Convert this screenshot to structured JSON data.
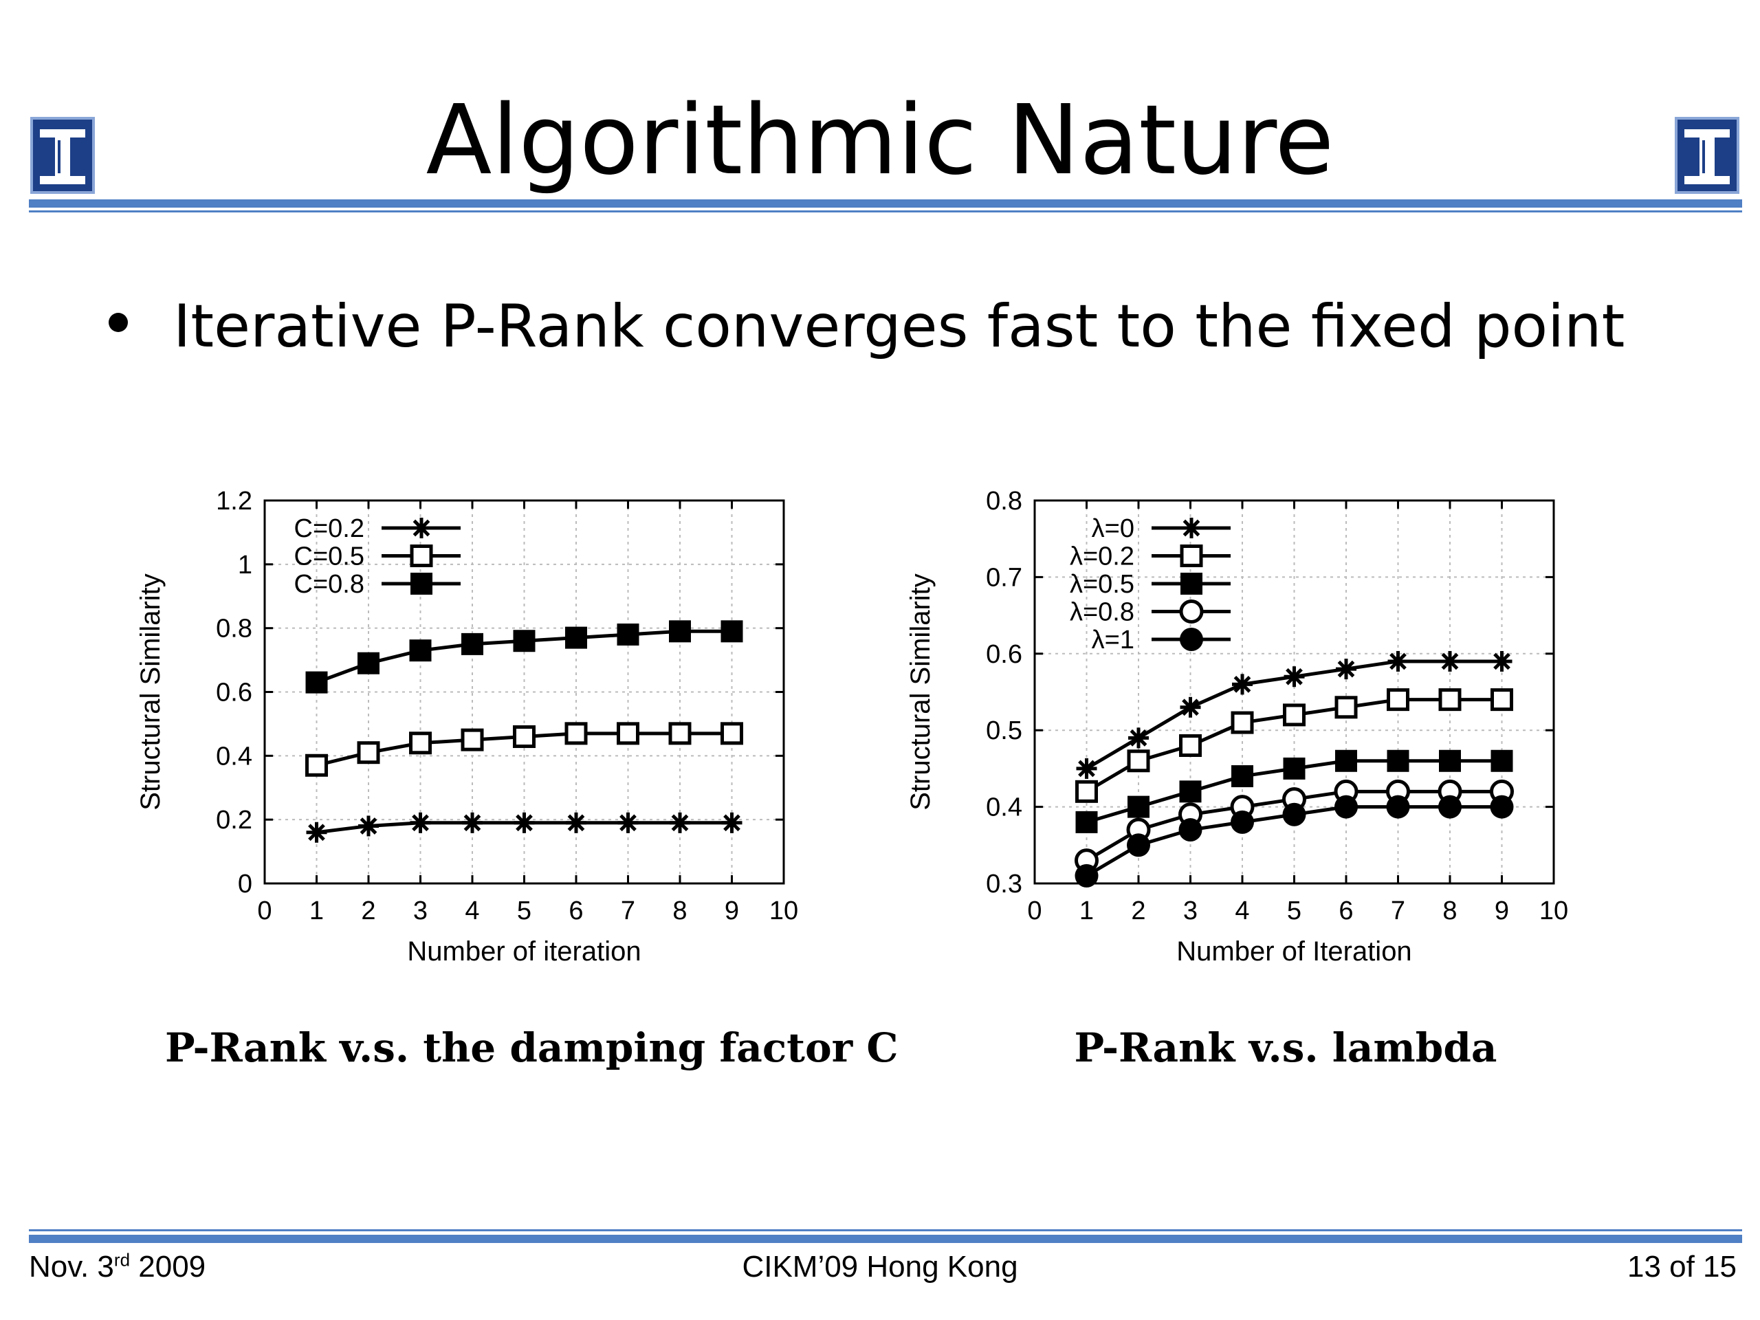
{
  "slide": {
    "title": "Algorithmic Nature",
    "bullet": "Iterative P-Rank converges fast to the fixed point",
    "captions": [
      "P-Rank v.s. the damping factor C",
      "P-Rank v.s. lambda"
    ]
  },
  "footer": {
    "date_prefix": "Nov. 3",
    "date_sup": "rd",
    "date_suffix": " 2009",
    "center": "CIKM’09 Hong Kong",
    "page": "13 of 15"
  },
  "colors": {
    "accent": "#4f7fc4",
    "logo": "#1d3f87",
    "grid": "#bbbbbb"
  },
  "icons": {
    "logo": "university-column-logo-icon"
  },
  "chart_data": [
    {
      "type": "line",
      "xlabel": "Number of iteration",
      "ylabel": "Structural Similarity",
      "xlim": [
        0,
        10
      ],
      "ylim": [
        0,
        1.2
      ],
      "xticks": [
        0,
        1,
        2,
        3,
        4,
        5,
        6,
        7,
        8,
        9,
        10
      ],
      "yticks": [
        0,
        0.2,
        0.4,
        0.6,
        0.8,
        1,
        1.2
      ],
      "grid": true,
      "legend_position": "top-left",
      "x": [
        1,
        2,
        3,
        4,
        5,
        6,
        7,
        8,
        9
      ],
      "series": [
        {
          "name": "C=0.2",
          "marker": "star",
          "values": [
            0.16,
            0.18,
            0.19,
            0.19,
            0.19,
            0.19,
            0.19,
            0.19,
            0.19
          ]
        },
        {
          "name": "C=0.5",
          "marker": "open-square",
          "values": [
            0.37,
            0.41,
            0.44,
            0.45,
            0.46,
            0.47,
            0.47,
            0.47,
            0.47
          ]
        },
        {
          "name": "C=0.8",
          "marker": "filled-square",
          "values": [
            0.63,
            0.69,
            0.73,
            0.75,
            0.76,
            0.77,
            0.78,
            0.79,
            0.79
          ]
        }
      ]
    },
    {
      "type": "line",
      "xlabel": "Number of Iteration",
      "ylabel": "Structural Similarity",
      "xlim": [
        0,
        10
      ],
      "ylim": [
        0.3,
        0.8
      ],
      "xticks": [
        0,
        1,
        2,
        3,
        4,
        5,
        6,
        7,
        8,
        9,
        10
      ],
      "yticks": [
        0.3,
        0.4,
        0.5,
        0.6,
        0.7,
        0.8
      ],
      "grid": true,
      "legend_position": "top-left",
      "x": [
        1,
        2,
        3,
        4,
        5,
        6,
        7,
        8,
        9
      ],
      "series": [
        {
          "name": "λ=0",
          "marker": "star",
          "values": [
            0.45,
            0.49,
            0.53,
            0.56,
            0.57,
            0.58,
            0.59,
            0.59,
            0.59
          ]
        },
        {
          "name": "λ=0.2",
          "marker": "open-square",
          "values": [
            0.42,
            0.46,
            0.48,
            0.51,
            0.52,
            0.53,
            0.54,
            0.54,
            0.54
          ]
        },
        {
          "name": "λ=0.5",
          "marker": "filled-square",
          "values": [
            0.38,
            0.4,
            0.42,
            0.44,
            0.45,
            0.46,
            0.46,
            0.46,
            0.46
          ]
        },
        {
          "name": "λ=0.8",
          "marker": "open-circle",
          "values": [
            0.33,
            0.37,
            0.39,
            0.4,
            0.41,
            0.42,
            0.42,
            0.42,
            0.42
          ]
        },
        {
          "name": "λ=1",
          "marker": "filled-circle",
          "values": [
            0.31,
            0.35,
            0.37,
            0.38,
            0.39,
            0.4,
            0.4,
            0.4,
            0.4
          ]
        }
      ]
    }
  ]
}
